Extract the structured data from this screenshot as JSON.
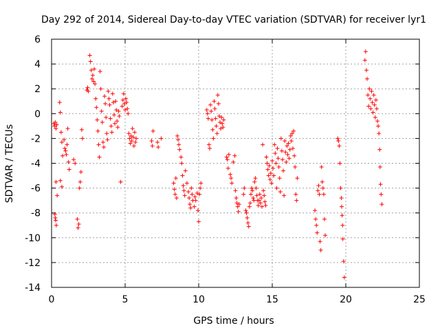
{
  "chart_data": {
    "type": "scatter",
    "title": "Day 292 of 2014, Sidereal Day-to-day VTEC variation (SDTVAR) for receiver lyr1",
    "xlabel": "GPS time / hours",
    "ylabel": "SDTVAR / TECUs",
    "xlim": [
      0,
      25
    ],
    "ylim": [
      -14,
      6
    ],
    "xticks": [
      0,
      5,
      10,
      15,
      20,
      25
    ],
    "yticks": [
      -14,
      -12,
      -10,
      -8,
      -6,
      -4,
      -2,
      0,
      2,
      4,
      6
    ],
    "xtick_labels": [
      "0",
      "5",
      "10",
      "15",
      "20",
      "25"
    ],
    "ytick_labels": [
      "-14",
      "-12",
      "-10",
      "-8",
      "-6",
      "-4",
      "-2",
      "0",
      "2",
      "4",
      "6"
    ],
    "grid": true,
    "marker": "+",
    "marker_color": "#ff0000",
    "series": [
      {
        "name": "SDTVAR",
        "points": [
          [
            0.15,
            -0.8
          ],
          [
            0.2,
            -1.0
          ],
          [
            0.25,
            -0.7
          ],
          [
            0.3,
            -1.2
          ],
          [
            0.35,
            -0.9
          ],
          [
            0.22,
            -8.1
          ],
          [
            0.28,
            -8.6
          ],
          [
            0.32,
            -9.0
          ],
          [
            0.25,
            -8.4
          ],
          [
            0.3,
            -5.5
          ],
          [
            0.38,
            -6.6
          ],
          [
            0.55,
            0.9
          ],
          [
            0.6,
            0.1
          ],
          [
            0.65,
            -1.5
          ],
          [
            0.7,
            -2.3
          ],
          [
            0.75,
            -3.4
          ],
          [
            0.6,
            -5.4
          ],
          [
            0.7,
            -5.9
          ],
          [
            0.85,
            -2.1
          ],
          [
            0.9,
            -2.8
          ],
          [
            0.95,
            -3.0
          ],
          [
            1.0,
            -3.3
          ],
          [
            1.05,
            -2.5
          ],
          [
            1.1,
            -1.2
          ],
          [
            1.15,
            -3.9
          ],
          [
            1.2,
            -4.5
          ],
          [
            1.5,
            -3.7
          ],
          [
            1.6,
            -4.0
          ],
          [
            1.75,
            -8.5
          ],
          [
            1.8,
            -9.2
          ],
          [
            1.85,
            -8.9
          ],
          [
            1.9,
            -6.0
          ],
          [
            1.95,
            -5.5
          ],
          [
            2.0,
            -4.7
          ],
          [
            2.05,
            -1.3
          ],
          [
            2.1,
            -2.0
          ],
          [
            2.4,
            1.9
          ],
          [
            2.45,
            2.1
          ],
          [
            2.5,
            1.8
          ],
          [
            2.6,
            4.7
          ],
          [
            2.65,
            4.2
          ],
          [
            2.7,
            3.5
          ],
          [
            2.75,
            2.8
          ],
          [
            2.8,
            3.1
          ],
          [
            2.85,
            2.6
          ],
          [
            2.9,
            3.6
          ],
          [
            2.95,
            2.4
          ],
          [
            3.0,
            1.2
          ],
          [
            3.05,
            0.5
          ],
          [
            3.1,
            -0.5
          ],
          [
            3.15,
            -1.4
          ],
          [
            3.2,
            -2.5
          ],
          [
            3.25,
            -3.5
          ],
          [
            3.3,
            3.4
          ],
          [
            3.35,
            2.0
          ],
          [
            3.4,
            0.2
          ],
          [
            3.45,
            -0.7
          ],
          [
            3.5,
            -2.3
          ],
          [
            3.55,
            -2.7
          ],
          [
            3.6,
            1.4
          ],
          [
            3.65,
            0.8
          ],
          [
            3.7,
            -0.3
          ],
          [
            3.75,
            -1.6
          ],
          [
            3.8,
            -2.1
          ],
          [
            3.85,
            1.8
          ],
          [
            3.9,
            1.2
          ],
          [
            3.95,
            0.7
          ],
          [
            4.0,
            -0.4
          ],
          [
            4.05,
            -1.0
          ],
          [
            4.1,
            -1.5
          ],
          [
            4.15,
            1.6
          ],
          [
            4.2,
            0.9
          ],
          [
            4.25,
            -0.1
          ],
          [
            4.3,
            -0.8
          ],
          [
            4.35,
            1.0
          ],
          [
            4.4,
            0.3
          ],
          [
            4.45,
            -0.6
          ],
          [
            4.5,
            -1.1
          ],
          [
            4.55,
            0.2
          ],
          [
            4.6,
            -0.2
          ],
          [
            4.7,
            -5.5
          ],
          [
            4.8,
            0.6
          ],
          [
            4.85,
            1.1
          ],
          [
            4.9,
            1.6
          ],
          [
            4.95,
            0.8
          ],
          [
            5.0,
            0.3
          ],
          [
            5.05,
            1.2
          ],
          [
            5.1,
            0.9
          ],
          [
            5.15,
            0.4
          ],
          [
            5.2,
            0.0
          ],
          [
            5.25,
            -1.6
          ],
          [
            5.3,
            -2.0
          ],
          [
            5.35,
            -2.4
          ],
          [
            5.4,
            -1.8
          ],
          [
            5.45,
            -2.2
          ],
          [
            5.5,
            -1.2
          ],
          [
            5.55,
            -1.9
          ],
          [
            5.6,
            -2.6
          ],
          [
            5.65,
            -1.5
          ],
          [
            5.7,
            -2.3
          ],
          [
            5.75,
            -2.0
          ],
          [
            6.8,
            -2.2
          ],
          [
            6.85,
            -2.6
          ],
          [
            6.9,
            -1.4
          ],
          [
            7.2,
            -2.3
          ],
          [
            7.25,
            -2.7
          ],
          [
            7.45,
            -2.0
          ],
          [
            8.3,
            -5.6
          ],
          [
            8.35,
            -6.1
          ],
          [
            8.4,
            -6.5
          ],
          [
            8.45,
            -5.2
          ],
          [
            8.5,
            -6.8
          ],
          [
            8.55,
            -1.8
          ],
          [
            8.6,
            -2.1
          ],
          [
            8.65,
            -2.5
          ],
          [
            8.7,
            -2.9
          ],
          [
            8.8,
            -3.5
          ],
          [
            8.85,
            -4.0
          ],
          [
            8.9,
            -5.0
          ],
          [
            8.95,
            -5.8
          ],
          [
            9.0,
            -6.2
          ],
          [
            9.05,
            -6.6
          ],
          [
            9.1,
            -4.6
          ],
          [
            9.2,
            -5.6
          ],
          [
            9.3,
            -6.3
          ],
          [
            9.35,
            -6.8
          ],
          [
            9.4,
            -7.3
          ],
          [
            9.45,
            -7.6
          ],
          [
            9.5,
            -6.0
          ],
          [
            9.55,
            -6.5
          ],
          [
            9.6,
            -7.0
          ],
          [
            9.7,
            -7.5
          ],
          [
            9.75,
            -6.7
          ],
          [
            9.8,
            -7.0
          ],
          [
            9.9,
            -6.4
          ],
          [
            9.95,
            -7.8
          ],
          [
            10.0,
            -8.7
          ],
          [
            10.05,
            -6.5
          ],
          [
            10.1,
            -6.0
          ],
          [
            10.15,
            -5.6
          ],
          [
            10.55,
            0.3
          ],
          [
            10.6,
            0.0
          ],
          [
            10.65,
            -0.4
          ],
          [
            10.7,
            -2.5
          ],
          [
            10.75,
            -2.8
          ],
          [
            10.8,
            0.7
          ],
          [
            10.85,
            0.2
          ],
          [
            10.9,
            -0.5
          ],
          [
            10.95,
            -1.3
          ],
          [
            11.0,
            -2.0
          ],
          [
            11.05,
            1.0
          ],
          [
            11.1,
            0.4
          ],
          [
            11.15,
            -0.4
          ],
          [
            11.2,
            -1.0
          ],
          [
            11.25,
            -1.6
          ],
          [
            11.3,
            1.5
          ],
          [
            11.35,
            0.8
          ],
          [
            11.4,
            -0.2
          ],
          [
            11.45,
            -0.7
          ],
          [
            11.5,
            -1.2
          ],
          [
            11.55,
            -0.3
          ],
          [
            11.6,
            -0.8
          ],
          [
            11.65,
            -1.1
          ],
          [
            11.7,
            -0.5
          ],
          [
            11.9,
            -3.5
          ],
          [
            11.95,
            -3.7
          ],
          [
            12.0,
            -4.4
          ],
          [
            12.05,
            -3.3
          ],
          [
            12.15,
            -4.9
          ],
          [
            12.2,
            -5.2
          ],
          [
            12.25,
            -5.6
          ],
          [
            12.35,
            -3.9
          ],
          [
            12.45,
            -3.4
          ],
          [
            12.5,
            -6.2
          ],
          [
            12.55,
            -6.8
          ],
          [
            12.6,
            -7.2
          ],
          [
            12.65,
            -7.5
          ],
          [
            12.7,
            -7.9
          ],
          [
            12.75,
            -7.3
          ],
          [
            13.05,
            -6.5
          ],
          [
            13.1,
            -6.0
          ],
          [
            13.2,
            -7.8
          ],
          [
            13.25,
            -8.0
          ],
          [
            13.3,
            -8.4
          ],
          [
            13.35,
            -8.8
          ],
          [
            13.4,
            -9.1
          ],
          [
            13.45,
            -7.5
          ],
          [
            13.5,
            -7.2
          ],
          [
            13.55,
            -6.5
          ],
          [
            13.6,
            -6.0
          ],
          [
            13.65,
            -6.2
          ],
          [
            13.7,
            -6.8
          ],
          [
            13.75,
            -7.0
          ],
          [
            13.8,
            -5.5
          ],
          [
            13.85,
            -5.2
          ],
          [
            13.9,
            -6.0
          ],
          [
            13.95,
            -6.6
          ],
          [
            14.0,
            -7.0
          ],
          [
            14.05,
            -7.4
          ],
          [
            14.1,
            -7.0
          ],
          [
            14.15,
            -6.5
          ],
          [
            14.2,
            -7.2
          ],
          [
            14.25,
            -6.8
          ],
          [
            14.3,
            -7.5
          ],
          [
            14.35,
            -2.5
          ],
          [
            14.4,
            -6.2
          ],
          [
            14.45,
            -6.6
          ],
          [
            14.5,
            -7.1
          ],
          [
            14.55,
            -7.4
          ],
          [
            14.6,
            -3.5
          ],
          [
            14.65,
            -4.0
          ],
          [
            14.7,
            -4.5
          ],
          [
            14.75,
            -5.0
          ],
          [
            14.8,
            -4.2
          ],
          [
            14.85,
            -5.3
          ],
          [
            14.9,
            -4.8
          ],
          [
            14.95,
            -5.6
          ],
          [
            15.0,
            -3.8
          ],
          [
            15.05,
            -4.4
          ],
          [
            15.1,
            -5.0
          ],
          [
            15.15,
            -2.5
          ],
          [
            15.2,
            -3.2
          ],
          [
            15.25,
            -4.0
          ],
          [
            15.3,
            -6.0
          ],
          [
            15.35,
            -2.8
          ],
          [
            15.4,
            -3.6
          ],
          [
            15.45,
            -4.3
          ],
          [
            15.5,
            -5.2
          ],
          [
            15.55,
            -6.3
          ],
          [
            15.6,
            -2.0
          ],
          [
            15.65,
            -3.0
          ],
          [
            15.7,
            -3.7
          ],
          [
            15.75,
            -4.6
          ],
          [
            15.8,
            -6.6
          ],
          [
            15.85,
            -2.2
          ],
          [
            15.9,
            -3.1
          ],
          [
            15.95,
            -3.9
          ],
          [
            16.0,
            -2.6
          ],
          [
            16.05,
            -3.3
          ],
          [
            16.1,
            -2.4
          ],
          [
            16.15,
            -3.6
          ],
          [
            16.2,
            -2.9
          ],
          [
            16.25,
            -1.8
          ],
          [
            16.3,
            -2.2
          ],
          [
            16.35,
            -1.6
          ],
          [
            16.4,
            -2.8
          ],
          [
            16.45,
            -1.4
          ],
          [
            16.5,
            -3.4
          ],
          [
            16.55,
            -4.3
          ],
          [
            16.6,
            -6.5
          ],
          [
            16.65,
            -7.0
          ],
          [
            16.7,
            -5.2
          ],
          [
            17.9,
            -7.8
          ],
          [
            17.95,
            -8.5
          ],
          [
            18.0,
            -9.0
          ],
          [
            18.05,
            -9.6
          ],
          [
            18.1,
            -6.2
          ],
          [
            18.15,
            -5.8
          ],
          [
            18.2,
            -6.5
          ],
          [
            18.25,
            -10.3
          ],
          [
            18.3,
            -11.0
          ],
          [
            18.35,
            -4.3
          ],
          [
            18.4,
            -5.5
          ],
          [
            18.45,
            -6.0
          ],
          [
            18.5,
            -6.5
          ],
          [
            18.55,
            -8.5
          ],
          [
            18.6,
            -9.8
          ],
          [
            19.45,
            -2.0
          ],
          [
            19.5,
            -2.2
          ],
          [
            19.55,
            -2.6
          ],
          [
            19.6,
            -4.0
          ],
          [
            19.65,
            -6.0
          ],
          [
            19.7,
            -6.8
          ],
          [
            19.72,
            -7.5
          ],
          [
            19.75,
            -8.2
          ],
          [
            19.78,
            -9.0
          ],
          [
            19.8,
            -10.1
          ],
          [
            19.85,
            -11.9
          ],
          [
            19.9,
            -13.2
          ],
          [
            21.3,
            4.3
          ],
          [
            21.35,
            5.0
          ],
          [
            21.4,
            3.5
          ],
          [
            21.45,
            2.8
          ],
          [
            21.5,
            1.5
          ],
          [
            21.55,
            0.6
          ],
          [
            21.6,
            2.0
          ],
          [
            21.65,
            1.2
          ],
          [
            21.7,
            0.4
          ],
          [
            21.75,
            1.8
          ],
          [
            21.8,
            0.9
          ],
          [
            21.85,
            0.1
          ],
          [
            21.9,
            1.5
          ],
          [
            21.95,
            0.7
          ],
          [
            22.0,
            -0.3
          ],
          [
            22.05,
            1.1
          ],
          [
            22.1,
            0.4
          ],
          [
            22.15,
            -0.6
          ],
          [
            22.2,
            -1.0
          ],
          [
            22.25,
            -1.6
          ],
          [
            22.3,
            -2.9
          ],
          [
            22.33,
            -4.3
          ],
          [
            22.36,
            -5.7
          ],
          [
            22.4,
            -6.5
          ],
          [
            22.45,
            -7.3
          ]
        ]
      }
    ]
  }
}
